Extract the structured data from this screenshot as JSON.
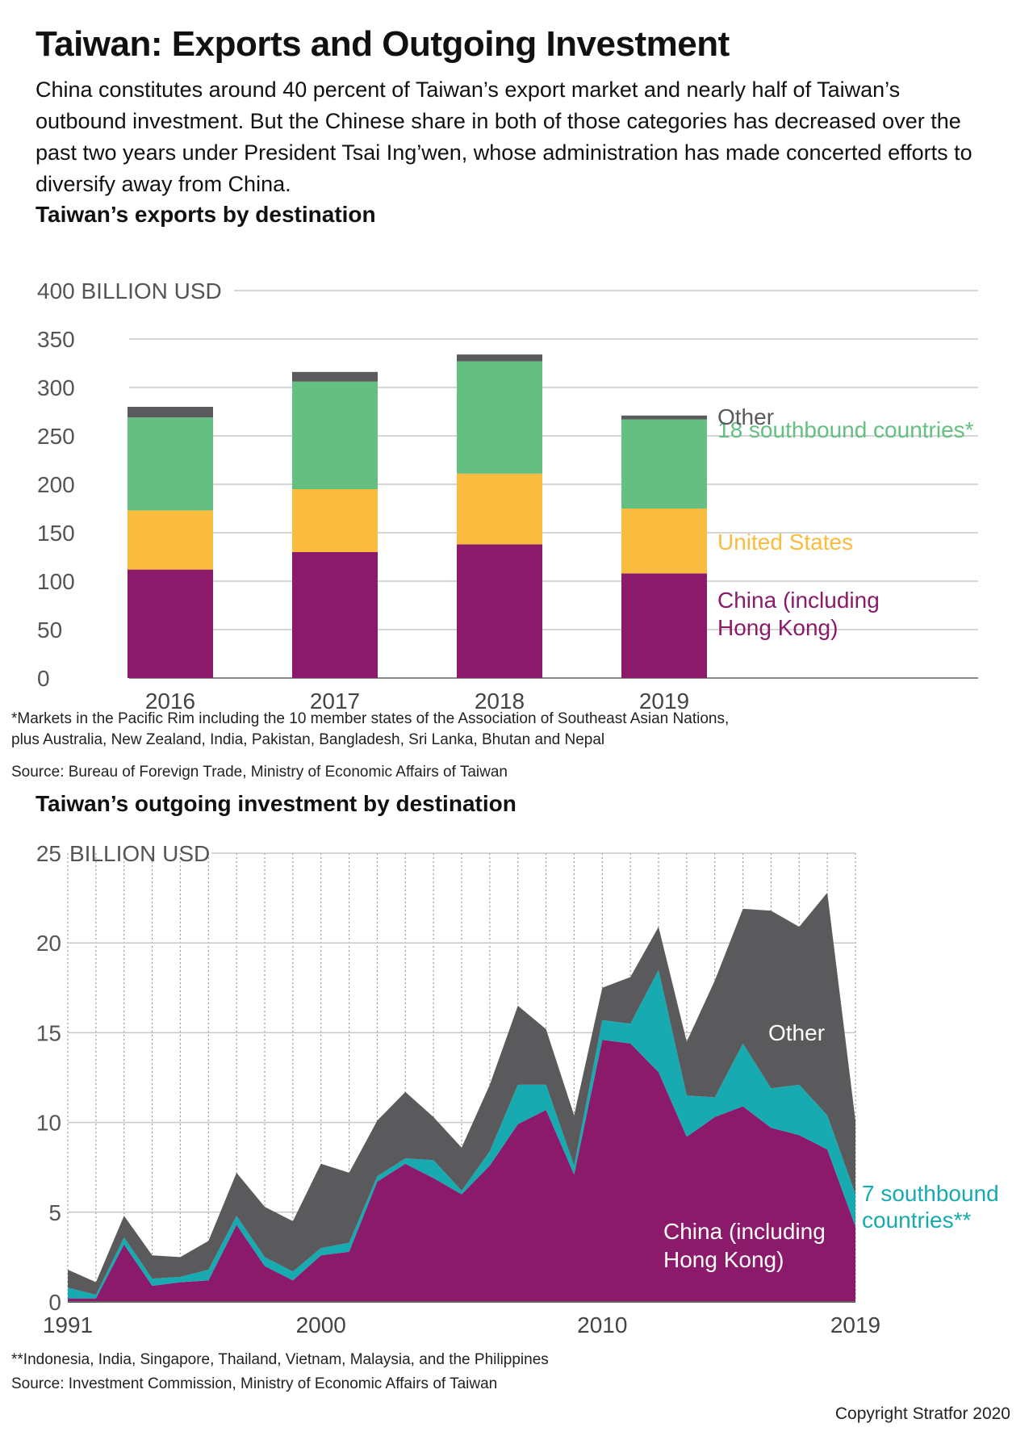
{
  "title": "Taiwan: Exports and Outgoing Investment",
  "subtitle": "China constitutes around 40 percent of Taiwan’s export market and nearly half of Taiwan’s outbound investment. But the Chinese share in both of those categories has decreased over the past two years under President Tsai Ing’wen, whose administration has made concerted efforts to diversify away from China.",
  "copyright": "Copyright Stratfor 2020",
  "colors": {
    "china": "#8b1a6b",
    "us": "#f9bc3f",
    "southbound18": "#65bf82",
    "southbound7": "#17aab0",
    "other": "#5a5a5c",
    "grid": "#c8c8c8"
  },
  "chart_data": [
    {
      "type": "bar",
      "stacked": true,
      "title": "Taiwan’s exports by destination",
      "unit_label": "400 BILLION USD",
      "categories": [
        "2016",
        "2017",
        "2018",
        "2019"
      ],
      "ylim": [
        0,
        400
      ],
      "yticks": [
        0,
        50,
        100,
        150,
        200,
        250,
        300,
        350,
        400
      ],
      "series": [
        {
          "name": "China (including Hong Kong)",
          "color": "#8b1a6b",
          "values": [
            112,
            130,
            138,
            108
          ]
        },
        {
          "name": "United States",
          "color": "#f9bc3f",
          "values": [
            61,
            65,
            73,
            67
          ]
        },
        {
          "name": "18 southbound countries*",
          "color": "#65bf82",
          "values": [
            96,
            111,
            116,
            92
          ]
        },
        {
          "name": "Other",
          "color": "#5a5a5c",
          "values": [
            11,
            10,
            7,
            4
          ]
        }
      ],
      "footnote_lines": [
        "*Markets in the Pacific Rim including the 10 member states of the Association of Southeast Asian Nations,",
        "plus Australia, New Zealand, India, Pakistan, Bangladesh, Sri Lanka, Bhutan and Nepal"
      ],
      "source": "Source: Bureau of Forevign Trade, Ministry of Economic Affairs of Taiwan"
    },
    {
      "type": "area",
      "stacked": true,
      "title": "Taiwan’s outgoing investment by destination",
      "unit_label": "BILLION USD",
      "x": [
        1991,
        1992,
        1993,
        1994,
        1995,
        1996,
        1997,
        1998,
        1999,
        2000,
        2001,
        2002,
        2003,
        2004,
        2005,
        2006,
        2007,
        2008,
        2009,
        2010,
        2011,
        2012,
        2013,
        2014,
        2015,
        2016,
        2017,
        2018,
        2019
      ],
      "xlim": [
        1991,
        2019
      ],
      "xticks": [
        1991,
        2000,
        2010,
        2019
      ],
      "ylim": [
        0,
        25
      ],
      "yticks": [
        0,
        5,
        10,
        15,
        20,
        25
      ],
      "series": [
        {
          "name": "China (including Hong Kong)",
          "color": "#8b1a6b",
          "values": [
            0.2,
            0.2,
            3.2,
            0.9,
            1.1,
            1.2,
            4.3,
            2.0,
            1.2,
            2.6,
            2.8,
            6.7,
            7.7,
            6.9,
            6.0,
            7.6,
            9.9,
            10.7,
            7.1,
            14.6,
            14.4,
            12.8,
            9.2,
            10.3,
            10.9,
            9.7,
            9.3,
            8.5,
            4.2
          ]
        },
        {
          "name": "7 southbound countries**",
          "color": "#17aab0",
          "values": [
            0.6,
            0.2,
            0.4,
            0.4,
            0.3,
            0.6,
            0.5,
            0.5,
            0.5,
            0.4,
            0.5,
            0.3,
            0.3,
            1.0,
            0.2,
            0.8,
            2.2,
            1.4,
            0.5,
            1.1,
            1.1,
            5.7,
            2.3,
            1.1,
            3.5,
            2.2,
            2.8,
            1.9,
            1.8
          ]
        },
        {
          "name": "Other",
          "color": "#5a5a5c",
          "values": [
            1.0,
            0.7,
            1.2,
            1.3,
            1.1,
            1.6,
            2.4,
            2.8,
            2.8,
            4.7,
            3.9,
            3.1,
            3.7,
            2.4,
            2.4,
            3.7,
            4.4,
            3.1,
            2.8,
            1.8,
            2.6,
            2.4,
            3.0,
            6.5,
            7.5,
            9.9,
            8.8,
            12.4,
            4.1
          ]
        }
      ],
      "footnote": "**Indonesia, India, Singapore, Thailand, Vietnam, Malaysia, and the Philippines",
      "source": "Source: Investment Commission, Ministry of Economic Affairs of Taiwan"
    }
  ]
}
